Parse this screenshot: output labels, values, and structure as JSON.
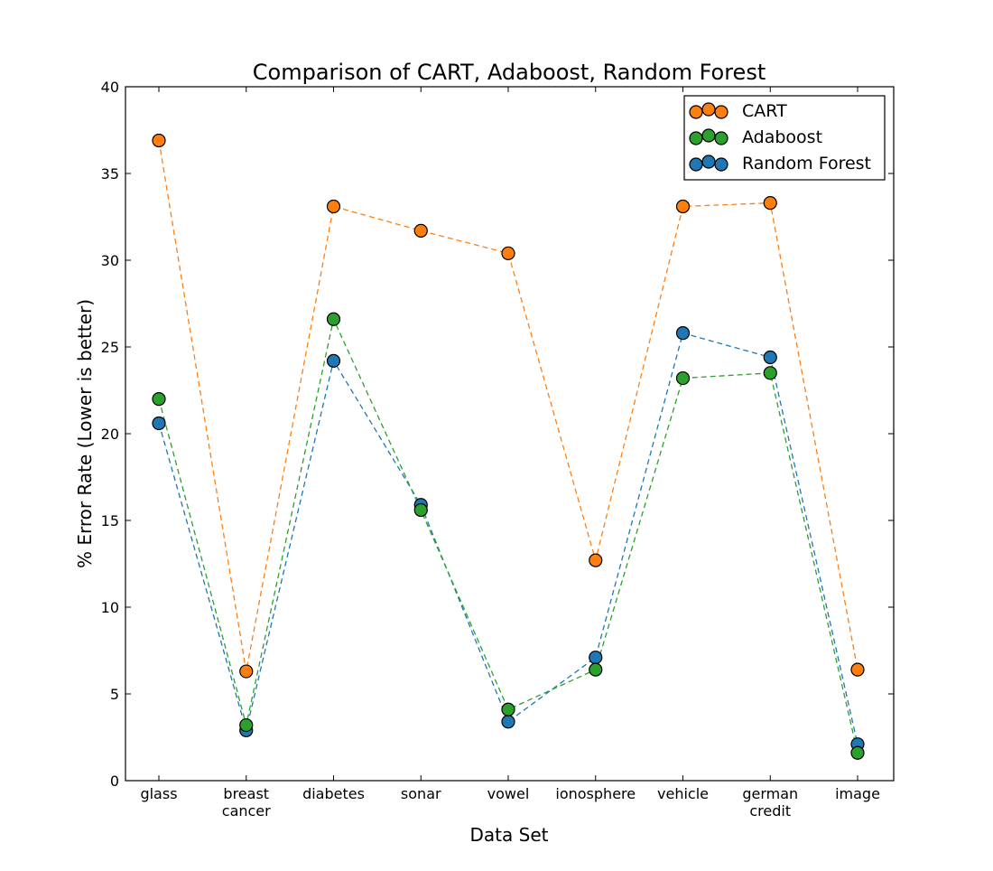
{
  "chart_data": {
    "type": "line",
    "title": "Comparison of CART, Adaboost, Random Forest",
    "xlabel": "Data Set",
    "ylabel": "% Error Rate (Lower is better)",
    "categories": [
      [
        "glass"
      ],
      [
        "breast",
        "cancer"
      ],
      [
        "diabetes"
      ],
      [
        "sonar"
      ],
      [
        "vowel"
      ],
      [
        "ionosphere"
      ],
      [
        "vehicle"
      ],
      [
        "german",
        "credit"
      ],
      [
        "image"
      ]
    ],
    "ylim": [
      0,
      40
    ],
    "yticks": [
      0,
      5,
      10,
      15,
      20,
      25,
      30,
      35,
      40
    ],
    "grid": false,
    "legend_position": "top-right",
    "line_style": "dashed",
    "marker": "circle",
    "series": [
      {
        "name": "CART",
        "color": "#ff7f0e",
        "values": [
          36.9,
          6.3,
          33.1,
          31.7,
          30.4,
          12.7,
          33.1,
          33.3,
          6.4
        ]
      },
      {
        "name": "Adaboost",
        "color": "#2ca02c",
        "values": [
          22.0,
          3.2,
          26.6,
          15.6,
          4.1,
          6.4,
          23.2,
          23.5,
          1.6
        ]
      },
      {
        "name": "Random Forest",
        "color": "#1f77b4",
        "values": [
          20.6,
          2.9,
          24.2,
          15.9,
          3.4,
          7.1,
          25.8,
          24.4,
          2.1
        ]
      }
    ]
  }
}
